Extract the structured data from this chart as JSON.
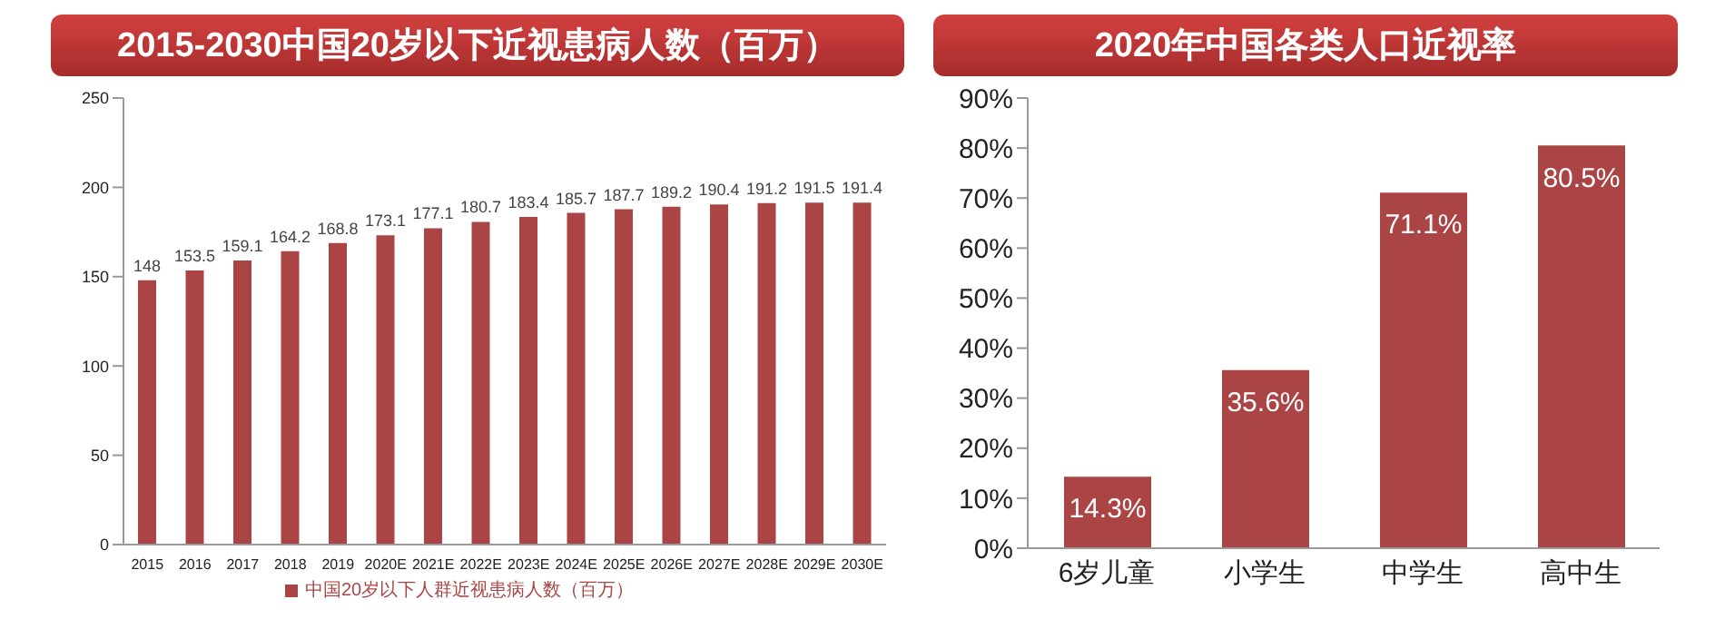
{
  "chart_data": [
    {
      "type": "bar",
      "title": "2015-2030中国20岁以下近视患病人数（百万）",
      "categories": [
        "2015",
        "2016",
        "2017",
        "2018",
        "2019",
        "2020E",
        "2021E",
        "2022E",
        "2023E",
        "2024E",
        "2025E",
        "2026E",
        "2027E",
        "2028E",
        "2029E",
        "2030E"
      ],
      "series": [
        {
          "name": "中国20岁以下人群近视患病人数（百万）",
          "color": "#ab4545",
          "values": [
            148,
            153.5,
            159.1,
            164.2,
            168.8,
            173.1,
            177.1,
            180.7,
            183.4,
            185.7,
            187.7,
            189.2,
            190.4,
            191.2,
            191.5,
            191.4
          ]
        }
      ],
      "ylim": [
        0,
        250
      ],
      "yticks": [
        0,
        50,
        100,
        150,
        200,
        250
      ],
      "grid": false,
      "legend": "bottom",
      "data_labels": true
    },
    {
      "type": "bar",
      "title": "2020年中国各类人口近视率",
      "categories": [
        "6岁儿童",
        "小学生",
        "中学生",
        "高中生"
      ],
      "values": [
        14.3,
        35.6,
        71.1,
        80.5
      ],
      "color": "#ab4545",
      "value_labels": [
        "14.3%",
        "35.6%",
        "71.1%",
        "80.5%"
      ],
      "ylim": [
        0,
        90
      ],
      "yticks": [
        {
          "value": 0,
          "label": "0%"
        },
        {
          "value": 10,
          "label": "10%"
        },
        {
          "value": 20,
          "label": "20%"
        },
        {
          "value": 30,
          "label": "30%"
        },
        {
          "value": 40,
          "label": "40%"
        },
        {
          "value": 50,
          "label": "50%"
        },
        {
          "value": 60,
          "label": "60%"
        },
        {
          "value": 70,
          "label": "70%"
        },
        {
          "value": 80,
          "label": "80%"
        },
        {
          "value": 90,
          "label": "90%"
        }
      ],
      "grid": false
    }
  ]
}
